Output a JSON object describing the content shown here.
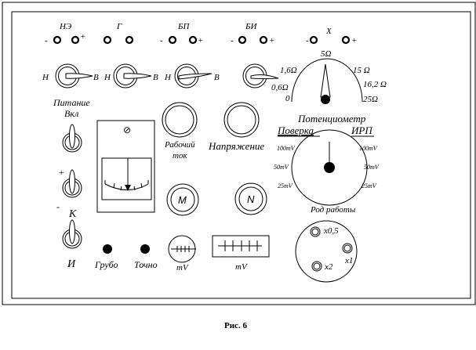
{
  "terminals": {
    "ne": {
      "label": "НЭ",
      "minus": "-",
      "plus": "+"
    },
    "g": {
      "label": "Г"
    },
    "bp": {
      "label": "БП",
      "minus": "-",
      "plus": "+"
    },
    "bi": {
      "label": "БИ",
      "minus": "-",
      "plus": "+"
    },
    "x": {
      "label": "X",
      "minus": "-",
      "plus": "+"
    }
  },
  "switch_labels": {
    "low": "Н",
    "high": "В"
  },
  "resistance_dial": {
    "labels": [
      "0",
      "0,6Ω",
      "1,6Ω",
      "5Ω",
      "15 Ω",
      "16,2 Ω",
      "25Ω"
    ]
  },
  "power": {
    "label1": "Питание",
    "label2": "Вкл"
  },
  "polarity": {
    "plus": "+",
    "minus": "-",
    "k": "К",
    "i": "И"
  },
  "meter": {
    "zero_symbol": "⊘"
  },
  "knobs": {
    "work_current_1": "Рабочий",
    "work_current_2": "ток",
    "voltage": "Напряжение",
    "m": "M",
    "n": "N",
    "coarse": "Грубо",
    "fine": "Точно",
    "mv_round": "mV",
    "mv_rect": "mV"
  },
  "potentiometer": {
    "title": "Потенциометр",
    "left": "Поверка",
    "right": "ИРП",
    "left_ranges": [
      "100mV",
      "50mV",
      "25mV"
    ],
    "right_ranges": [
      "100mV",
      "50mV",
      "25mV"
    ]
  },
  "mode": {
    "title": "Род работы",
    "x05": "x0,5",
    "x1": "x1",
    "x2": "x2"
  },
  "caption": "Рис. 6"
}
